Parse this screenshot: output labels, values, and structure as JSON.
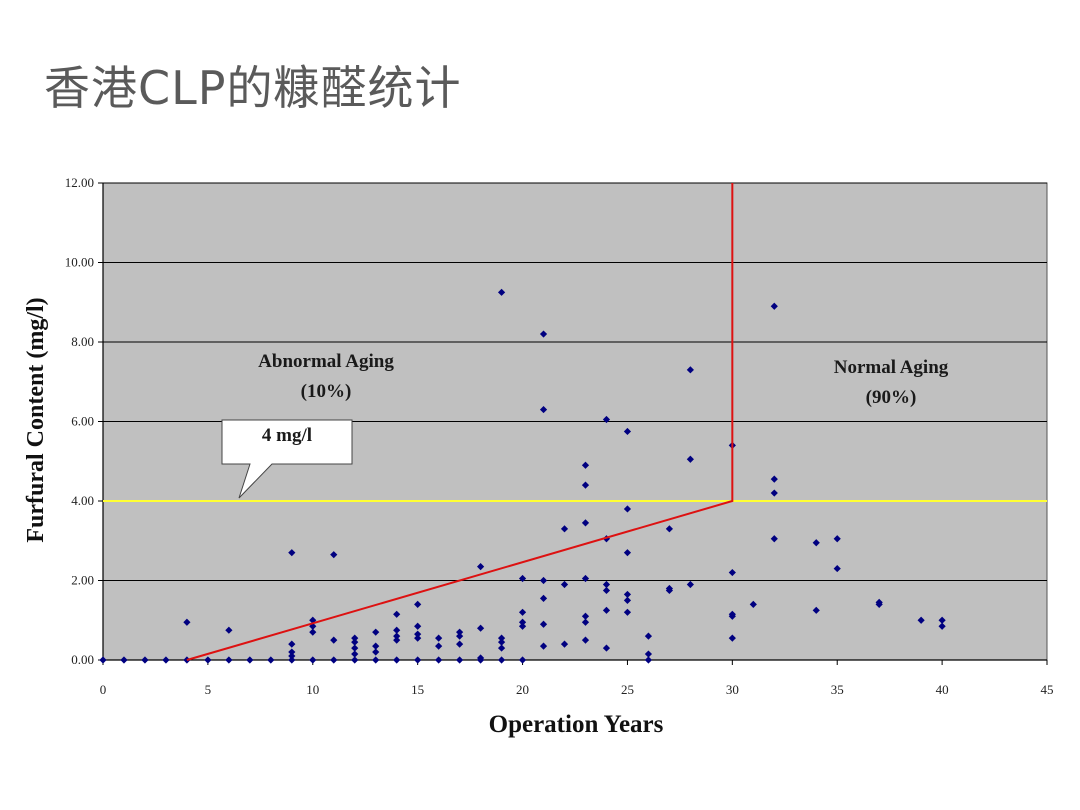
{
  "slide": {
    "title": "香港CLP的糠醛统计"
  },
  "chart_data": {
    "type": "scatter",
    "xlabel": "Operation Years",
    "ylabel": "Furfural Content (mg/l)",
    "xlim": [
      0,
      45
    ],
    "ylim": [
      0,
      12
    ],
    "x_ticks": [
      "0",
      "5",
      "10",
      "15",
      "20",
      "25",
      "30",
      "35",
      "40",
      "45"
    ],
    "y_ticks": [
      "0.00",
      "2.00",
      "4.00",
      "6.00",
      "8.00",
      "10.00",
      "12.00"
    ],
    "grid": "horizontal",
    "plot_background": "#c0c0c0",
    "marker_color": "#000080",
    "threshold": {
      "y": 4.0,
      "color": "#ffff33",
      "callout": "4 mg/l"
    },
    "boundary": {
      "points": [
        [
          4,
          0
        ],
        [
          30,
          4
        ],
        [
          30,
          12
        ]
      ],
      "color": "#dd1111"
    },
    "annotations": [
      {
        "id": "abnormal",
        "line1": "Abnormal Aging",
        "line2": "(10%)"
      },
      {
        "id": "normal",
        "line1": "Normal Aging",
        "line2": "(90%)"
      }
    ],
    "points": [
      [
        0,
        0
      ],
      [
        1,
        0
      ],
      [
        2,
        0
      ],
      [
        3,
        0
      ],
      [
        4,
        0
      ],
      [
        4,
        0.95
      ],
      [
        5,
        0
      ],
      [
        6,
        0
      ],
      [
        6,
        0.75
      ],
      [
        7,
        0
      ],
      [
        8,
        0
      ],
      [
        9,
        0
      ],
      [
        9,
        0.1
      ],
      [
        9,
        0.2
      ],
      [
        9,
        0.4
      ],
      [
        9,
        2.7
      ],
      [
        10,
        0
      ],
      [
        10,
        0.7
      ],
      [
        10,
        0.85
      ],
      [
        10,
        1.0
      ],
      [
        11,
        0
      ],
      [
        11,
        0.5
      ],
      [
        11,
        2.65
      ],
      [
        12,
        0
      ],
      [
        12,
        0.15
      ],
      [
        12,
        0.3
      ],
      [
        12,
        0.45
      ],
      [
        12,
        0.55
      ],
      [
        13,
        0
      ],
      [
        13,
        0.2
      ],
      [
        13,
        0.35
      ],
      [
        13,
        0.7
      ],
      [
        14,
        0
      ],
      [
        14,
        0.5
      ],
      [
        14,
        0.6
      ],
      [
        14,
        0.75
      ],
      [
        14,
        1.15
      ],
      [
        15,
        0
      ],
      [
        15,
        0.55
      ],
      [
        15,
        0.65
      ],
      [
        15,
        0.85
      ],
      [
        15,
        1.4
      ],
      [
        16,
        0
      ],
      [
        16,
        0.35
      ],
      [
        16,
        0.55
      ],
      [
        17,
        0
      ],
      [
        17,
        0.4
      ],
      [
        17,
        0.6
      ],
      [
        17,
        0.7
      ],
      [
        18,
        0
      ],
      [
        18,
        0.05
      ],
      [
        18,
        0.8
      ],
      [
        18,
        2.35
      ],
      [
        19,
        0
      ],
      [
        19,
        0.3
      ],
      [
        19,
        0.45
      ],
      [
        19,
        0.55
      ],
      [
        19,
        9.25
      ],
      [
        20,
        0
      ],
      [
        20,
        0.85
      ],
      [
        20,
        0.95
      ],
      [
        20,
        1.2
      ],
      [
        20,
        2.05
      ],
      [
        21,
        0.35
      ],
      [
        21,
        0.9
      ],
      [
        21,
        1.55
      ],
      [
        21,
        2.0
      ],
      [
        21,
        6.3
      ],
      [
        21,
        8.2
      ],
      [
        22,
        0.4
      ],
      [
        22,
        1.9
      ],
      [
        22,
        3.3
      ],
      [
        23,
        0.5
      ],
      [
        23,
        0.95
      ],
      [
        23,
        1.1
      ],
      [
        23,
        2.05
      ],
      [
        23,
        3.45
      ],
      [
        23,
        4.4
      ],
      [
        23,
        4.9
      ],
      [
        24,
        0.3
      ],
      [
        24,
        1.25
      ],
      [
        24,
        1.75
      ],
      [
        24,
        1.9
      ],
      [
        24,
        3.05
      ],
      [
        24,
        6.05
      ],
      [
        25,
        1.2
      ],
      [
        25,
        1.5
      ],
      [
        25,
        1.65
      ],
      [
        25,
        2.7
      ],
      [
        25,
        3.8
      ],
      [
        25,
        5.75
      ],
      [
        26,
        0
      ],
      [
        26,
        0.15
      ],
      [
        26,
        0.6
      ],
      [
        27,
        1.75
      ],
      [
        27,
        1.8
      ],
      [
        27,
        3.3
      ],
      [
        28,
        1.9
      ],
      [
        28,
        5.05
      ],
      [
        28,
        7.3
      ],
      [
        30,
        0.55
      ],
      [
        30,
        1.1
      ],
      [
        30,
        1.15
      ],
      [
        30,
        2.2
      ],
      [
        30,
        5.4
      ],
      [
        31,
        1.4
      ],
      [
        32,
        3.05
      ],
      [
        32,
        4.2
      ],
      [
        32,
        4.55
      ],
      [
        32,
        8.9
      ],
      [
        34,
        1.25
      ],
      [
        34,
        2.95
      ],
      [
        35,
        2.3
      ],
      [
        35,
        3.05
      ],
      [
        37,
        1.4
      ],
      [
        37,
        1.45
      ],
      [
        39,
        1.0
      ],
      [
        40,
        0.85
      ],
      [
        40,
        1.0
      ]
    ]
  }
}
